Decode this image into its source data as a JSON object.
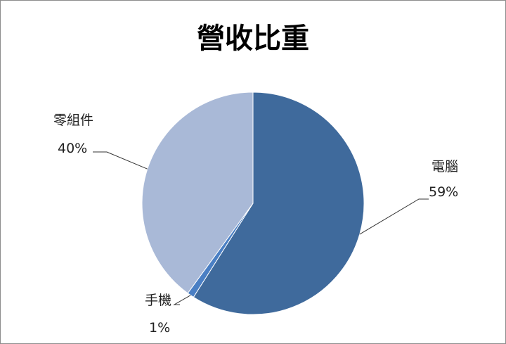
{
  "chart_data": {
    "type": "pie",
    "title": "營收比重",
    "categories": [
      "電腦",
      "手機",
      "零組件"
    ],
    "values": [
      59,
      1,
      40
    ],
    "value_labels": [
      "59%",
      "1%",
      "40%"
    ],
    "colors": [
      "#3f6a9c",
      "#4a7fc4",
      "#a9b9d7"
    ],
    "legend": "none"
  }
}
